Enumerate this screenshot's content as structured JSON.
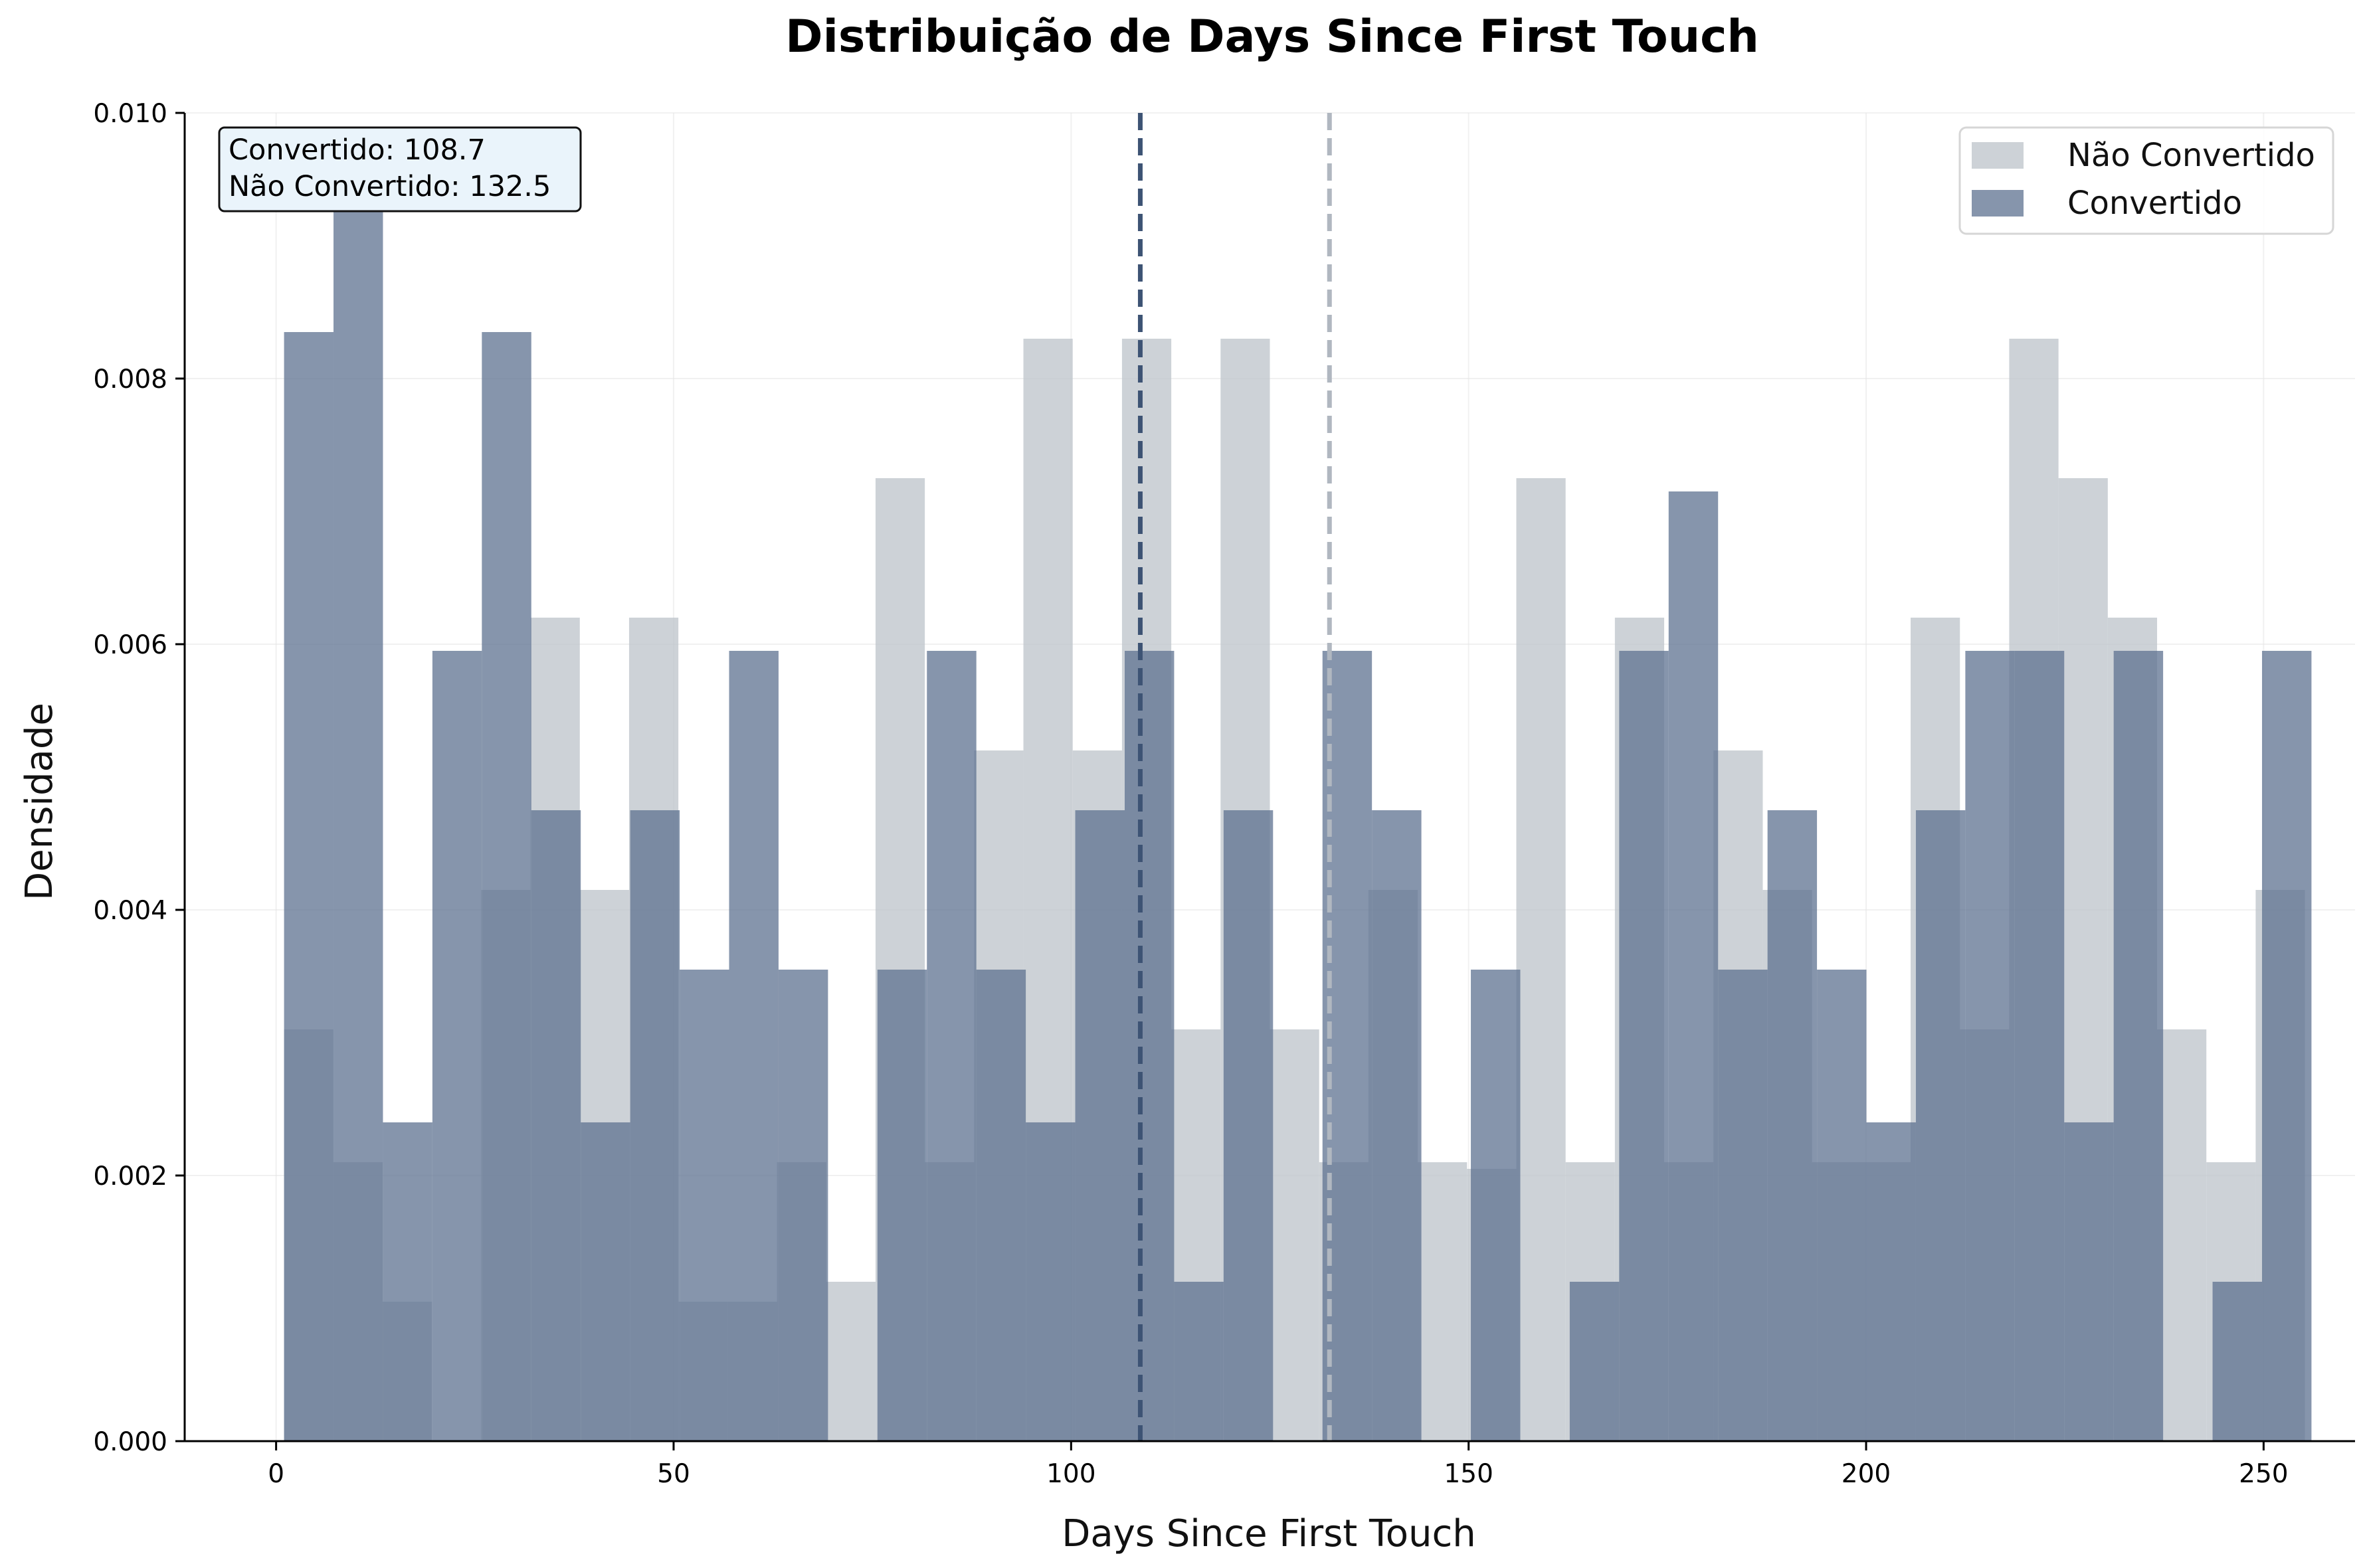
{
  "chart_data": {
    "type": "histogram",
    "title": "Distribuição de Days Since First Touch",
    "xlabel": "Days Since First Touch",
    "ylabel": "Densidade",
    "xlim": [
      -11.5,
      261.5
    ],
    "ylim": [
      0,
      0.01
    ],
    "xticks": [
      0,
      50,
      100,
      150,
      200,
      250
    ],
    "yticks": [
      "0.000",
      "0.002",
      "0.004",
      "0.006",
      "0.008",
      "0.010"
    ],
    "grid": true,
    "legend_position": "top-right",
    "annotation": [
      "Convertido: 108.7",
      "Não Convertido: 132.5"
    ],
    "series": [
      {
        "name": "Não Convertido",
        "color": "#bcc3c9",
        "bin_start": 1,
        "bin_width": 6.2,
        "values": [
          0.0031,
          0.0021,
          0.00105,
          0,
          0.00415,
          0.0062,
          0.00415,
          0.0062,
          0.00105,
          0.00105,
          0.0021,
          0.0012,
          0.00725,
          0.0021,
          0.0052,
          0.0083,
          0.0052,
          0.0083,
          0.0031,
          0.0083,
          0.0031,
          0.0021,
          0.00415,
          0.0021,
          0.00205,
          0.00725,
          0.0021,
          0.0062,
          0.0021,
          0.0052,
          0.00415,
          0.0021,
          0.0021,
          0.0062,
          0.0031,
          0.0083,
          0.00725,
          0.0062,
          0.0031,
          0.0021,
          0.00415
        ],
        "mean": 132.5
      },
      {
        "name": "Convertido",
        "color": "#5d7190",
        "bin_start": 1,
        "bin_width": 6.22,
        "values": [
          0.00835,
          0.00955,
          0.0024,
          0.00595,
          0.00835,
          0.00475,
          0.0024,
          0.00475,
          0.00355,
          0.00595,
          0.00355,
          0,
          0.00355,
          0.00595,
          0.00355,
          0.0024,
          0.00475,
          0.00595,
          0.0012,
          0.00475,
          0,
          0.00595,
          0.00475,
          0,
          0.00355,
          0,
          0.0012,
          0.00595,
          0.00715,
          0.00355,
          0.00475,
          0.00355,
          0.0024,
          0.00475,
          0.00595,
          0.00595,
          0.0024,
          0.00595,
          0,
          0.0012,
          0.00595
        ],
        "mean": 108.7
      }
    ]
  }
}
